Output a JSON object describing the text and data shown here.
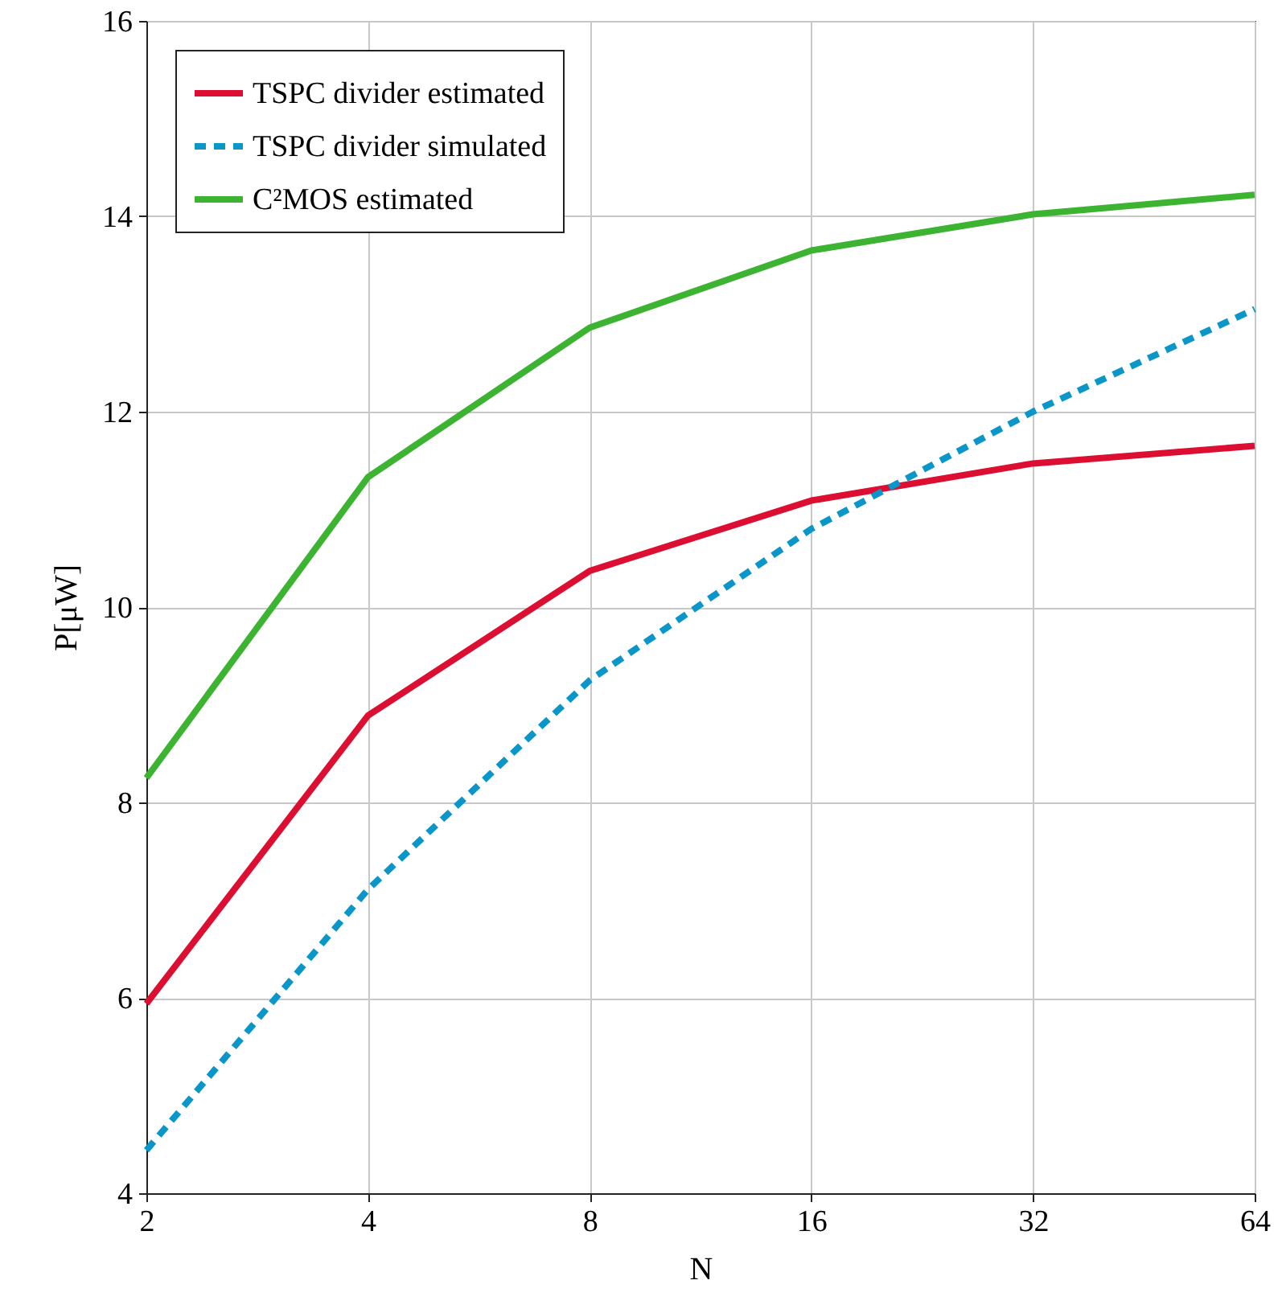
{
  "chart_data": {
    "type": "line",
    "xlabel": "N",
    "ylabel": "P[μW]",
    "log": "x",
    "x": [
      2,
      4,
      8,
      16,
      32,
      64
    ],
    "xlim": [
      2,
      64
    ],
    "xticks": [
      2,
      4,
      8,
      16,
      32,
      64
    ],
    "ylim": [
      4,
      16
    ],
    "yticks": [
      4,
      6,
      8,
      10,
      12,
      14,
      16
    ],
    "grid": true,
    "legend": "top left",
    "line_style": "solid",
    "series": [
      {
        "name": "TSPC divider estimated",
        "color": "#dc0f32",
        "values": [
          5.94,
          8.89,
          10.37,
          11.09,
          11.47,
          11.65
        ]
      },
      {
        "name": "TSPC divider simulated",
        "color": "#0a96c8",
        "line_style": "dashed",
        "values": [
          4.44,
          7.11,
          9.25,
          10.8,
          12.0,
          13.05
        ]
      },
      {
        "name": "C²MOS estimated",
        "color": "#3cb432",
        "values": [
          8.25,
          11.33,
          12.86,
          13.65,
          14.02,
          14.22
        ]
      }
    ]
  }
}
